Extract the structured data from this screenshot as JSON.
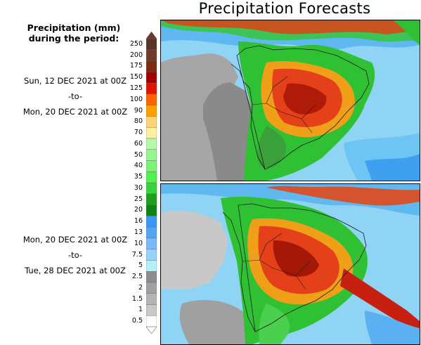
{
  "title": "Precipitation Forecasts",
  "legend": {
    "heading_line1": "Precipitation (mm)",
    "heading_line2": "during the period:",
    "levels": [
      "0.5",
      "1",
      "1.5",
      "2",
      "2.5",
      "5",
      "7.5",
      "10",
      "13",
      "16",
      "20",
      "25",
      "30",
      "35",
      "40",
      "50",
      "60",
      "70",
      "80",
      "90",
      "100",
      "125",
      "150",
      "175",
      "200",
      "250"
    ],
    "colors": [
      "#ffffff",
      "#c8c8c8",
      "#b4b4b4",
      "#a0a0a0",
      "#8c8c8c",
      "#b4f0fa",
      "#96d2fa",
      "#78b9fa",
      "#50a5f5",
      "#3c96f5",
      "#0f8214",
      "#1ea01e",
      "#37d23c",
      "#50f050",
      "#78f573",
      "#96f58c",
      "#b4faaa",
      "#fff0a0",
      "#ffd278",
      "#ffa000",
      "#ff6400",
      "#e11400",
      "#a50000",
      "#7e2b14",
      "#6e3c28",
      "#5a3428"
    ]
  },
  "periods": [
    {
      "start": "Sun, 12 DEC 2021 at 00Z",
      "sep": "-to-",
      "end": "Mon, 20 DEC 2021 at 00Z"
    },
    {
      "start": "Mon, 20 DEC 2021 at 00Z",
      "sep": "-to-",
      "end": "Tue, 28 DEC 2021 at 00Z"
    }
  ]
}
